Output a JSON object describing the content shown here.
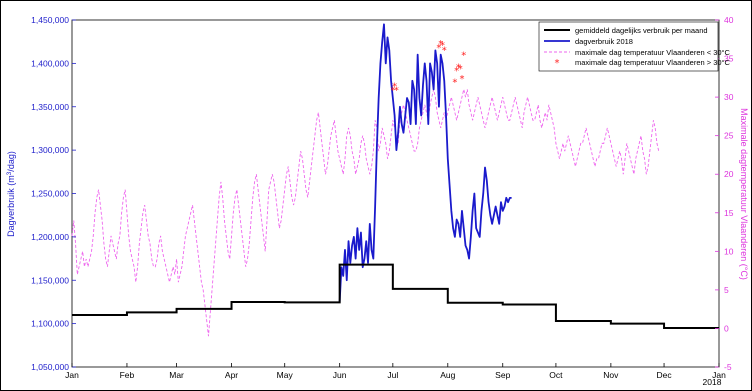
{
  "chart_data": {
    "type": "line",
    "title": "",
    "xlabel": "",
    "x_tick_labels": [
      "Jan",
      "Feb",
      "Mar",
      "Apr",
      "May",
      "Jun",
      "Jul",
      "Aug",
      "Sep",
      "Oct",
      "Nov",
      "Dec",
      "Jan"
    ],
    "x_year_label": "2018",
    "ylabel_left_main": "Dagverbruik (m",
    "ylabel_left_sup": "3",
    "ylabel_left_tail": "/dag)",
    "ylabel_right": "Maximale dagtemperatuur Vlaanderen (°C)",
    "ylim_left": [
      1050000,
      1450000
    ],
    "ylim_right": [
      -5,
      40
    ],
    "y_ticks_left": [
      "1,050,000",
      "1,100,000",
      "1,150,000",
      "1,200,000",
      "1,250,000",
      "1,300,000",
      "1,350,000",
      "1,400,000",
      "1,450,000"
    ],
    "y_ticks_right": [
      "-5",
      "0",
      "5",
      "10",
      "15",
      "20",
      "25",
      "30",
      "35",
      "40"
    ],
    "legend_position": "top-right",
    "colors": {
      "monthly": "#000000",
      "daily": "#1a1acc",
      "temp": "#ee66ee",
      "hot": "#ff2222",
      "left_axis": "#2222cc",
      "right_axis": "#dd33dd"
    },
    "series": [
      {
        "name": "gemiddeld dagelijks verbruik per maand",
        "style": "step",
        "values": [
          1110000,
          1113000,
          1117000,
          1125000,
          1124500,
          1168000,
          1140000,
          1124000,
          1122000,
          1103000,
          1100000,
          1095000
        ]
      },
      {
        "name": "dagverbruik 2018",
        "style": "line",
        "x_days": [
          151,
          152,
          153,
          154,
          155,
          156,
          157,
          158,
          159,
          160,
          161,
          162,
          163,
          164,
          165,
          166,
          167,
          168,
          169,
          170,
          171,
          172,
          173,
          174,
          175,
          176,
          177,
          178,
          179,
          180,
          181,
          182,
          183,
          184,
          185,
          186,
          187,
          188,
          189,
          190,
          191,
          192,
          193,
          194,
          195,
          196,
          197,
          198,
          199,
          200,
          201,
          202,
          203,
          204,
          205,
          206,
          207,
          208,
          209,
          210,
          211,
          212,
          213,
          214,
          215,
          216,
          217,
          218,
          219,
          220,
          221,
          222,
          223,
          224,
          225,
          226,
          227,
          228,
          229,
          230,
          231,
          232,
          233,
          234,
          235,
          236,
          237,
          238,
          239,
          240,
          241,
          242,
          243,
          244,
          245,
          246,
          247,
          248
        ],
        "values": [
          1125000,
          1165000,
          1155000,
          1185000,
          1150000,
          1195000,
          1170000,
          1190000,
          1200000,
          1175000,
          1210000,
          1185000,
          1205000,
          1165000,
          1175000,
          1195000,
          1170000,
          1215000,
          1185000,
          1175000,
          1235000,
          1305000,
          1360000,
          1400000,
          1425000,
          1445000,
          1400000,
          1430000,
          1415000,
          1380000,
          1360000,
          1340000,
          1300000,
          1320000,
          1350000,
          1330000,
          1320000,
          1340000,
          1360000,
          1355000,
          1330000,
          1380000,
          1370000,
          1330000,
          1410000,
          1360000,
          1340000,
          1375000,
          1400000,
          1380000,
          1330000,
          1400000,
          1390000,
          1370000,
          1415000,
          1400000,
          1350000,
          1410000,
          1400000,
          1380000,
          1340000,
          1290000,
          1260000,
          1230000,
          1210000,
          1200000,
          1220000,
          1215000,
          1200000,
          1230000,
          1210000,
          1190000,
          1185000,
          1175000,
          1200000,
          1230000,
          1250000,
          1210000,
          1205000,
          1200000,
          1230000,
          1250000,
          1280000,
          1265000,
          1240000,
          1225000,
          1215000,
          1225000,
          1235000,
          1225000,
          1215000,
          1240000,
          1230000,
          1235000,
          1245000,
          1240000,
          1245000,
          1245000
        ]
      },
      {
        "name": "maximale dag temperatuur Vlaanderen < 30°C",
        "style": "dashed",
        "x_start_day": 0,
        "values": [
          12,
          14,
          11,
          7,
          8,
          9,
          10,
          8,
          9,
          8,
          9,
          10,
          12,
          15,
          17,
          18,
          16,
          14,
          11,
          9,
          8,
          10,
          12,
          11,
          10,
          9,
          11,
          12,
          15,
          17,
          18,
          15,
          12,
          10,
          9,
          8,
          6,
          8,
          11,
          13,
          15,
          16,
          14,
          12,
          11,
          9,
          8,
          8,
          9,
          11,
          12,
          10,
          9,
          8,
          7,
          6,
          7,
          8,
          7,
          9,
          6,
          7,
          8,
          10,
          12,
          13,
          14,
          15,
          16,
          14,
          12,
          10,
          8,
          6,
          5,
          3,
          1,
          -1,
          2,
          5,
          8,
          11,
          14,
          17,
          19,
          17,
          14,
          12,
          10,
          9,
          12,
          15,
          17,
          18,
          16,
          14,
          12,
          10,
          8,
          9,
          11,
          14,
          17,
          19,
          20,
          18,
          16,
          14,
          12,
          10,
          14,
          18,
          19,
          20,
          19,
          17,
          15,
          13,
          14,
          16,
          18,
          20,
          21,
          19,
          17,
          16,
          17,
          19,
          21,
          23,
          22,
          20,
          18,
          17,
          19,
          21,
          23,
          25,
          27,
          28,
          26,
          24,
          22,
          20,
          21,
          23,
          25,
          26,
          27,
          25,
          23,
          22,
          21,
          20,
          22,
          25,
          26,
          25,
          23,
          22,
          20,
          21,
          22,
          24,
          25,
          24,
          22,
          21,
          20,
          21,
          23,
          27,
          26,
          23,
          24,
          26,
          25,
          24,
          22,
          23,
          25,
          27,
          26,
          25,
          24,
          27,
          28,
          29,
          28,
          27,
          26,
          25,
          24,
          23,
          23,
          24,
          26,
          27,
          28,
          29,
          28,
          27,
          29,
          30,
          31,
          30,
          28,
          27,
          26,
          27,
          28,
          27,
          28,
          29,
          30,
          29,
          28,
          27,
          28,
          29,
          30,
          31,
          30,
          31,
          29,
          28,
          27,
          28,
          29,
          30,
          29,
          28,
          27,
          26,
          27,
          28,
          29,
          30,
          29,
          28,
          27,
          28,
          29,
          30,
          29,
          28,
          27,
          27,
          28,
          29,
          30,
          29,
          28,
          27,
          26,
          28,
          29,
          30,
          29,
          28,
          27,
          27,
          28,
          29,
          27,
          26,
          27,
          28,
          27,
          29,
          28,
          27,
          26,
          24,
          23,
          22,
          23,
          24,
          23,
          24,
          25,
          24,
          23,
          22,
          21,
          22,
          23,
          24,
          24,
          25,
          26,
          25,
          24,
          23,
          22,
          21,
          22,
          22,
          23,
          24,
          24,
          25,
          26,
          25,
          24,
          23,
          22,
          21,
          22,
          23,
          22,
          20,
          22,
          24,
          23,
          22,
          21,
          20,
          22,
          23,
          24,
          25,
          23,
          22,
          20,
          21,
          23,
          25,
          27,
          26,
          24,
          23
        ]
      },
      {
        "name": "maximale dag temperatuur Vlaanderen > 30°C",
        "style": "markers",
        "x_days": [
          181,
          182,
          183,
          207,
          208,
          209,
          210,
          216,
          217,
          218,
          219,
          220,
          221
        ],
        "values": [
          31,
          31.5,
          31,
          36.5,
          37,
          36.8,
          36.2,
          32,
          33.5,
          34,
          33.8,
          32.5,
          35.5
        ]
      }
    ]
  }
}
